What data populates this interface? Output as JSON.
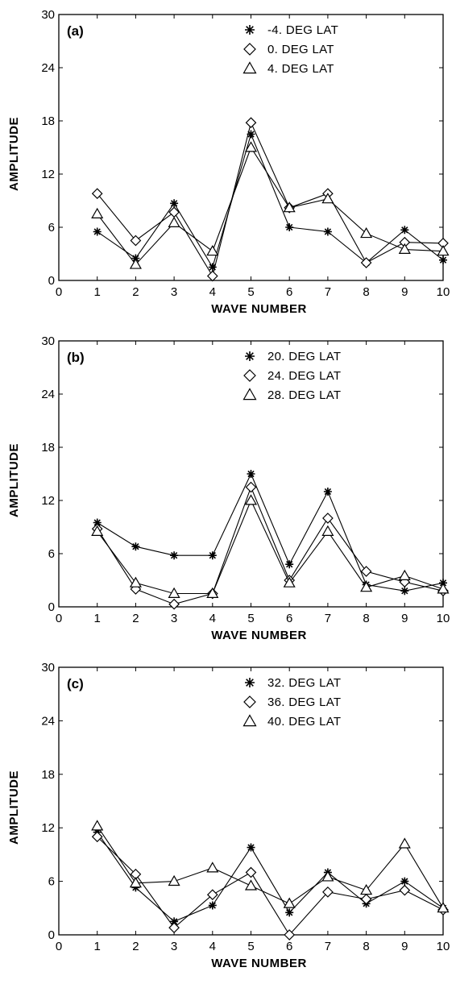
{
  "chart_data": [
    {
      "type": "line",
      "panel_label": "(a)",
      "xlabel": "WAVE NUMBER",
      "ylabel": "AMPLITUDE",
      "xlim": [
        0,
        10
      ],
      "ylim": [
        0,
        30
      ],
      "xticks": [
        "0",
        "1",
        "2",
        "3",
        "4",
        "5",
        "6",
        "7",
        "8",
        "9",
        "10"
      ],
      "yticks": [
        "0",
        "6",
        "12",
        "18",
        "24",
        "30"
      ],
      "legend_position": "top-right",
      "x": [
        1,
        2,
        3,
        4,
        5,
        6,
        7,
        8,
        9,
        10
      ],
      "series": [
        {
          "name": "-4. DEG LAT",
          "marker": "asterisk",
          "values": [
            5.5,
            2.5,
            8.7,
            1.5,
            16.5,
            6.0,
            5.5,
            2.0,
            5.7,
            2.3
          ]
        },
        {
          "name": "0. DEG LAT",
          "marker": "diamond",
          "values": [
            9.8,
            4.5,
            7.7,
            0.5,
            17.8,
            8.2,
            9.8,
            2.0,
            4.3,
            4.2
          ]
        },
        {
          "name": "4. DEG LAT",
          "marker": "triangle",
          "values": [
            7.5,
            1.8,
            6.5,
            3.3,
            15.0,
            8.2,
            9.2,
            5.3,
            3.5,
            3.3
          ]
        }
      ]
    },
    {
      "type": "line",
      "panel_label": "(b)",
      "xlabel": "WAVE NUMBER",
      "ylabel": "AMPLITUDE",
      "xlim": [
        0,
        10
      ],
      "ylim": [
        0,
        30
      ],
      "xticks": [
        "0",
        "1",
        "2",
        "3",
        "4",
        "5",
        "6",
        "7",
        "8",
        "9",
        "10"
      ],
      "yticks": [
        "0",
        "6",
        "12",
        "18",
        "24",
        "30"
      ],
      "legend_position": "top-right",
      "x": [
        1,
        2,
        3,
        4,
        5,
        6,
        7,
        8,
        9,
        10
      ],
      "series": [
        {
          "name": "20. DEG LAT",
          "marker": "asterisk",
          "values": [
            9.5,
            6.8,
            5.8,
            5.8,
            15.0,
            4.8,
            13.0,
            2.5,
            1.8,
            2.7
          ]
        },
        {
          "name": "24. DEG LAT",
          "marker": "diamond",
          "values": [
            8.8,
            2.0,
            0.3,
            1.5,
            13.5,
            3.0,
            10.0,
            4.0,
            2.8,
            1.8
          ]
        },
        {
          "name": "28. DEG LAT",
          "marker": "triangle",
          "values": [
            8.5,
            2.7,
            1.5,
            1.5,
            12.0,
            2.7,
            8.5,
            2.2,
            3.5,
            2.0
          ]
        }
      ]
    },
    {
      "type": "line",
      "panel_label": "(c)",
      "xlabel": "WAVE NUMBER",
      "ylabel": "AMPLITUDE",
      "xlim": [
        0,
        10
      ],
      "ylim": [
        0,
        30
      ],
      "xticks": [
        "0",
        "1",
        "2",
        "3",
        "4",
        "5",
        "6",
        "7",
        "8",
        "9",
        "10"
      ],
      "yticks": [
        "0",
        "6",
        "12",
        "18",
        "24",
        "30"
      ],
      "legend_position": "top-right",
      "x": [
        1,
        2,
        3,
        4,
        5,
        6,
        7,
        8,
        9,
        10
      ],
      "series": [
        {
          "name": "32. DEG LAT",
          "marker": "asterisk",
          "values": [
            11.5,
            5.3,
            1.5,
            3.3,
            9.8,
            2.5,
            7.0,
            3.5,
            6.0,
            3.0
          ]
        },
        {
          "name": "36. DEG LAT",
          "marker": "diamond",
          "values": [
            11.0,
            6.8,
            0.8,
            4.5,
            7.0,
            0.0,
            4.8,
            4.0,
            5.0,
            2.8
          ]
        },
        {
          "name": "40. DEG LAT",
          "marker": "triangle",
          "values": [
            12.2,
            5.8,
            6.0,
            7.5,
            5.5,
            3.5,
            6.5,
            5.0,
            10.2,
            3.0
          ]
        }
      ]
    }
  ]
}
